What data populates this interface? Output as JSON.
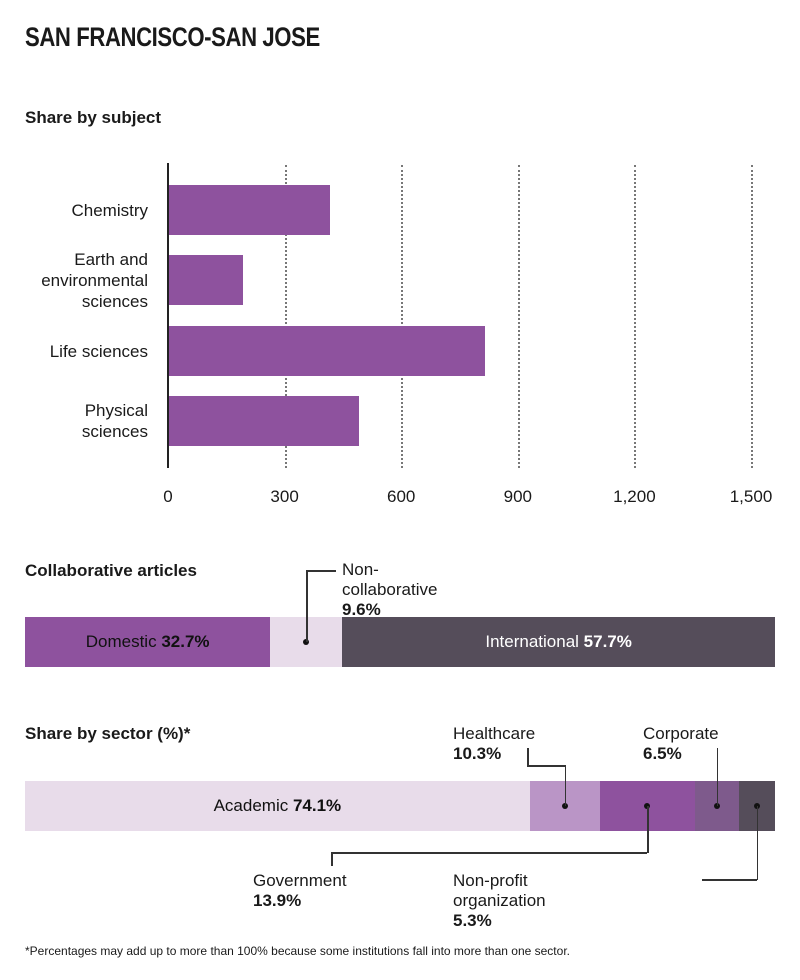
{
  "title": "SAN FRANCISCO-SAN JOSE",
  "footnote": "*Percentages may add up to more than 100% because some institutions fall into more than one sector.",
  "colors": {
    "purple": "#8E529E",
    "light": "#E8DCEA",
    "healthcare": "#BA95C6",
    "corporate": "#7E5A8C",
    "dark": "#554D5A"
  },
  "chart_data": [
    {
      "type": "bar",
      "title": "Share by subject",
      "orientation": "horizontal",
      "categories": [
        "Chemistry",
        "Earth and environmental sciences",
        "Life sciences",
        "Physical sciences"
      ],
      "category_lines": [
        [
          "Chemistry"
        ],
        [
          "Earth and",
          "environmental",
          "sciences"
        ],
        [
          "Life sciences"
        ],
        [
          "Physical",
          "sciences"
        ]
      ],
      "values": [
        416,
        192,
        815,
        492
      ],
      "xlim": [
        0,
        1500
      ],
      "xticks": [
        0,
        300,
        600,
        900,
        1200,
        1500
      ],
      "xtick_labels": [
        "0",
        "300",
        "600",
        "900",
        "1,200",
        "1,500"
      ],
      "grid": true
    },
    {
      "type": "bar",
      "title": "Collaborative articles",
      "stacked": true,
      "segments": [
        {
          "name": "Domestic",
          "value": 32.7,
          "label": "32.7%"
        },
        {
          "name": "Non-collaborative",
          "value": 9.6,
          "label": "9.6%"
        },
        {
          "name": "International",
          "value": 57.7,
          "label": "57.7%"
        }
      ]
    },
    {
      "type": "bar",
      "title": "Share by sector (%)*",
      "stacked": true,
      "segments": [
        {
          "name": "Academic",
          "value": 74.1,
          "label": "74.1%"
        },
        {
          "name": "Healthcare",
          "value": 10.3,
          "label": "10.3%"
        },
        {
          "name": "Government",
          "value": 13.9,
          "label": "13.9%"
        },
        {
          "name": "Corporate",
          "value": 6.5,
          "label": "6.5%"
        },
        {
          "name": "Non-profit organization",
          "value": 5.3,
          "label": "5.3%"
        }
      ]
    }
  ]
}
